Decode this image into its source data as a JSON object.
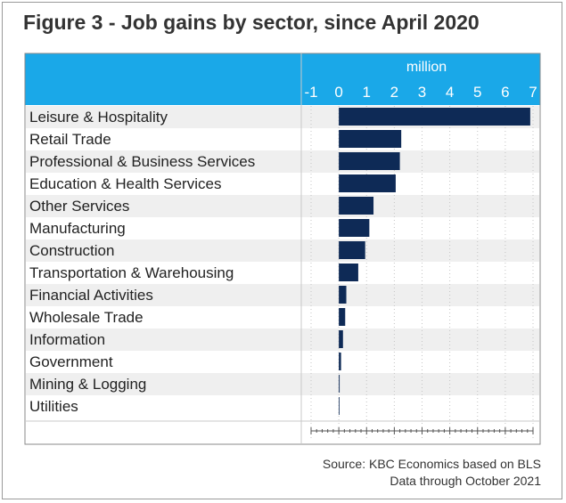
{
  "title": "Figure 3 - Job gains by sector, since April 2020",
  "source_lines": [
    "Source: KBC Economics based on BLS",
    "Data through October 2021"
  ],
  "colors": {
    "header_bg": "#1aa8e8",
    "bar": "#0e2a56",
    "row_alt": "#efefef",
    "border": "#8a8a8a",
    "text": "#222222"
  },
  "chart_data": {
    "type": "bar",
    "orientation": "horizontal",
    "title": "Figure 3 - Job gains by sector, since April 2020",
    "unit_label": "million",
    "xlim": [
      -1,
      7
    ],
    "x_ticks": [
      -1,
      0,
      1,
      2,
      3,
      4,
      5,
      6,
      7
    ],
    "x_tick_labels": [
      "-1",
      "0",
      "1",
      "2",
      "3",
      "4",
      "5",
      "6",
      "7"
    ],
    "axis_position": "top",
    "categories": [
      "Leisure & Hospitality",
      "Retail Trade",
      "Professional & Business Services",
      "Education & Health Services",
      "Other Services",
      "Manufacturing",
      "Construction",
      "Transportation & Warehousing",
      "Financial Activities",
      "Wholesale Trade",
      "Information",
      "Government",
      "Mining & Logging",
      "Utilities"
    ],
    "values": [
      6.9,
      2.25,
      2.2,
      2.05,
      1.25,
      1.1,
      0.95,
      0.7,
      0.27,
      0.23,
      0.15,
      0.08,
      0.03,
      0.01
    ]
  }
}
